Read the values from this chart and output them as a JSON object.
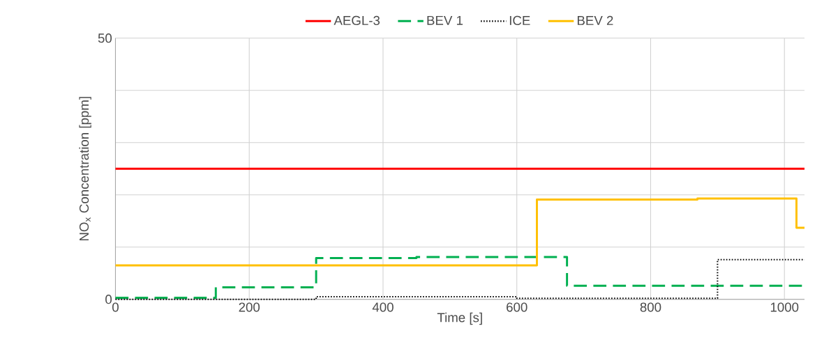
{
  "chart_data": {
    "type": "step",
    "xlabel": "Time [s]",
    "ylabel": "NO$_{x}$ Concentration [ppm]",
    "xlim": [
      0,
      1030
    ],
    "ylim": [
      0,
      50
    ],
    "xticks": [
      0,
      200,
      400,
      600,
      800,
      1000
    ],
    "yticks": [
      0,
      {
        "value": 10,
        "label": null
      },
      {
        "value": 20,
        "label": null
      },
      {
        "value": 30,
        "label": null
      },
      {
        "value": 40,
        "label": null
      },
      50
    ],
    "grid": true,
    "legend": "top",
    "series": [
      {
        "name": "AEGL-3",
        "color": "#ff0000",
        "line_style": "solid",
        "x": [
          0,
          1030
        ],
        "values": [
          25,
          25
        ]
      },
      {
        "name": "BEV 1",
        "color": "#00b050",
        "line_style": "dashed",
        "x": [
          0,
          150,
          300,
          450,
          675,
          1030
        ],
        "values": [
          0.3,
          2.3,
          7.9,
          8.1,
          2.6,
          2.6
        ]
      },
      {
        "name": "ICE",
        "color": "#000000",
        "line_style": "dotted",
        "x": [
          0,
          300,
          600,
          900,
          1030
        ],
        "values": [
          0,
          0.5,
          0.2,
          7.6,
          7.6
        ]
      },
      {
        "name": "BEV 2",
        "color": "#ffc000",
        "line_style": "solid",
        "x": [
          0,
          630,
          870,
          1018,
          1030
        ],
        "values": [
          6.5,
          19.1,
          19.3,
          13.7,
          13.7
        ]
      }
    ]
  }
}
